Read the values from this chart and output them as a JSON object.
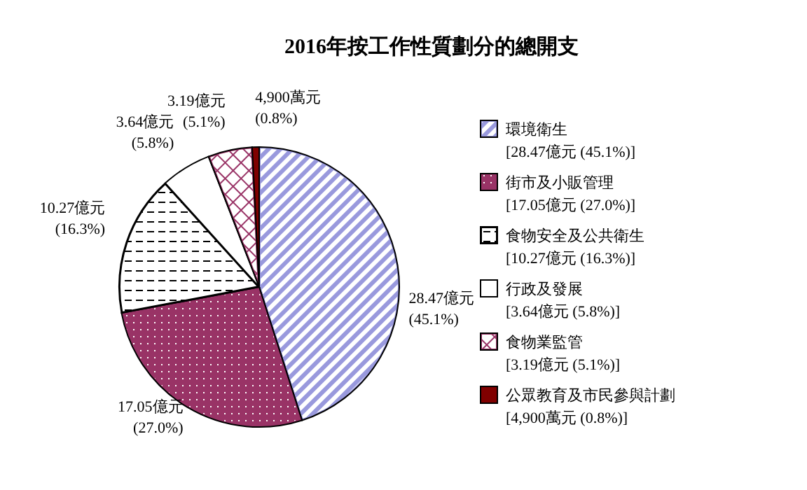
{
  "chart_data": {
    "type": "pie",
    "title": "2016年按工作性質劃分的總開支",
    "categories": [
      "環境衛生\n[28.47億元 (45.1%)]",
      "街市及小販管理\n[17.05億元 (27.0%)]",
      "食物安全及公共衛生\n[10.27億元 (16.3%)]",
      "行政及發展\n[3.64億元 (5.8%)]",
      "食物業監管\n[3.19億元 (5.1%)]",
      "公眾教育及市民參與計劃\n[4,900萬元 (0.8%)]"
    ],
    "values": [
      45.1,
      27.0,
      16.3,
      5.8,
      5.1,
      0.8
    ],
    "value_labels": [
      "28.47億元 (45.1%)",
      "17.05億元 (27.0%)",
      "10.27億元 (16.3%)",
      "3.64億元 (5.8%)",
      "3.19億元 (5.1%)",
      "4,900萬元 (0.8%)"
    ],
    "colors": [
      "#9999dd",
      "#993366",
      "#000000",
      "#ffffff",
      "#993366",
      "#800000"
    ],
    "legend": "right"
  }
}
